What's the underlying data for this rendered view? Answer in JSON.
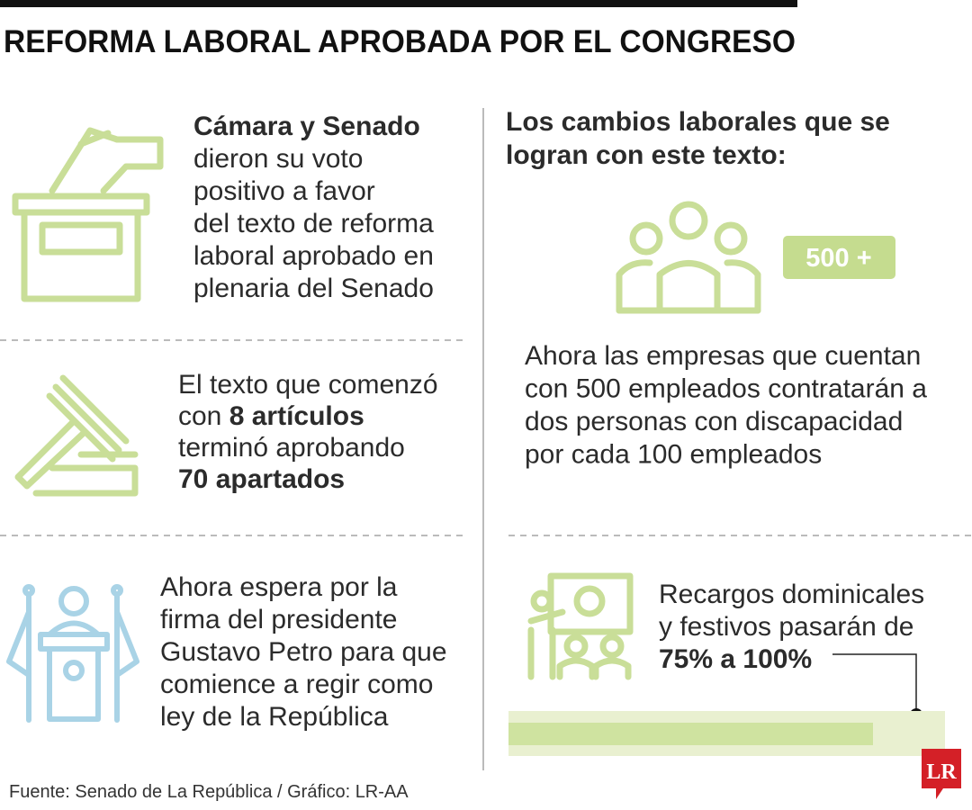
{
  "header": {
    "title": "REFORMA LABORAL APROBADA POR EL CONGRESO"
  },
  "left": {
    "vote": {
      "heading": "Cámara y Senado",
      "lines": [
        "dieron su voto",
        "positivo a favor",
        "del texto de reforma",
        "laboral aprobado en",
        "plenaria del Senado"
      ]
    },
    "articles": {
      "line_1": "El texto que comenzó",
      "line_2_start": "con",
      "line_2_bold": "8 artículos",
      "line_3": "terminó aprobando",
      "line_4_bold": "70 apartados"
    },
    "signature": {
      "lines": [
        "Ahora espera por la",
        "firma del presidente",
        "Gustavo Petro para que",
        "comience a regir como",
        "ley de la República"
      ]
    }
  },
  "right": {
    "heading": [
      "Los cambios laborales que se",
      "logran con este texto:"
    ],
    "hiring": {
      "badge": "500 +",
      "lines": [
        "Ahora las empresas que cuentan",
        "con 500 empleados contratarán a",
        "dos personas con discapacidad",
        "por cada 100 empleados"
      ]
    },
    "surcharge": {
      "lines": [
        "Recargos dominicales",
        "y festivos pasarán de"
      ],
      "bold": "75% a 100%"
    }
  },
  "footer": {
    "source": "Fuente: Senado de La República / Gráfico: LR-AA",
    "logo": "LR"
  }
}
